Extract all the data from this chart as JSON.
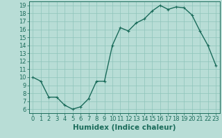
{
  "x": [
    0,
    1,
    2,
    3,
    4,
    5,
    6,
    7,
    8,
    9,
    10,
    11,
    12,
    13,
    14,
    15,
    16,
    17,
    18,
    19,
    20,
    21,
    22,
    23
  ],
  "y": [
    10,
    9.5,
    7.5,
    7.5,
    6.5,
    6.0,
    6.3,
    7.3,
    9.5,
    9.5,
    14.0,
    16.2,
    15.8,
    16.8,
    17.3,
    18.3,
    19.0,
    18.5,
    18.8,
    18.7,
    17.8,
    15.8,
    14.0,
    11.5
  ],
  "line_color": "#1a6b5a",
  "marker": "+",
  "bg_color": "#b8ddd6",
  "grid_color": "#8ec4ba",
  "xlabel": "Humidex (Indice chaleur)",
  "xlim": [
    -0.5,
    23.5
  ],
  "ylim": [
    5.5,
    19.5
  ],
  "yticks": [
    6,
    7,
    8,
    9,
    10,
    11,
    12,
    13,
    14,
    15,
    16,
    17,
    18,
    19
  ],
  "xticks": [
    0,
    1,
    2,
    3,
    4,
    5,
    6,
    7,
    8,
    9,
    10,
    11,
    12,
    13,
    14,
    15,
    16,
    17,
    18,
    19,
    20,
    21,
    22,
    23
  ],
  "tick_color": "#1a6b5a",
  "label_color": "#1a6b5a",
  "axis_color": "#1a6b5a",
  "xlabel_fontsize": 7.5,
  "tick_fontsize": 6.0,
  "linewidth": 1.0,
  "markersize": 3.5,
  "markeredgewidth": 0.8
}
